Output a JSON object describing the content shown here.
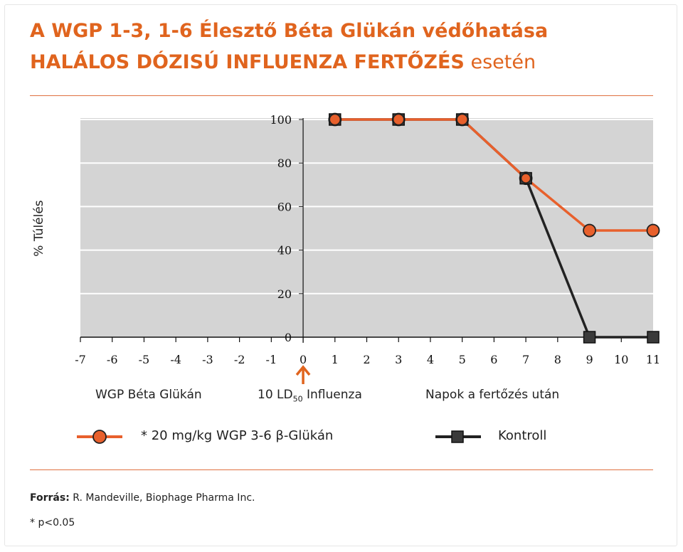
{
  "title_line1": "A WGP 1-3, 1-6 Élesztő Béta Glükán védőhatása",
  "title_line2_bold": "HALÁLOS DÓZISÚ INFLUENZA FERTŐZÉS",
  "title_line2_rest": " esetén",
  "sublabels": {
    "left": "WGP Béta Glükán",
    "middle_prefix": "10 LD",
    "middle_subscript": "50",
    "middle_suffix": " Influenza",
    "right": "Napok a fertőzés után"
  },
  "footer": {
    "source_label": "Forrás:",
    "source_text": " R. Mandeville, Biophage Pharma Inc.",
    "note": "*  p<0.05"
  },
  "colors": {
    "accent": "#e0641e",
    "orange_series": "#e8602c",
    "black_series": "#222222",
    "plot_bg": "#d4d4d4",
    "grid": "#ffffff"
  },
  "chart_data": {
    "type": "line",
    "title": "",
    "xlabel": "",
    "ylabel": "% Túlélés",
    "xlim": [
      -7,
      11
    ],
    "ylim": [
      0,
      100
    ],
    "xticks": [
      -7,
      -6,
      -5,
      -4,
      -3,
      -2,
      -1,
      0,
      1,
      2,
      3,
      4,
      5,
      6,
      7,
      8,
      9,
      10,
      11
    ],
    "yticks": [
      0,
      20,
      40,
      60,
      80,
      100
    ],
    "plot_x_range": [
      -7,
      11
    ],
    "shaded_from": -7,
    "zero_marker": "orange up arrow at x=0",
    "grid": true,
    "series": [
      {
        "name": "* 20 mg/kg WGP 3-6 β-Glükán",
        "marker": "circle",
        "color": "#e8602c",
        "x": [
          1,
          3,
          5,
          7,
          9,
          11
        ],
        "y": [
          100,
          100,
          100,
          73,
          49,
          49
        ]
      },
      {
        "name": "Kontroll",
        "marker": "square",
        "color": "#222222",
        "x": [
          1,
          3,
          5,
          7,
          9,
          11
        ],
        "y": [
          100,
          100,
          100,
          73,
          0,
          0
        ]
      }
    ]
  }
}
